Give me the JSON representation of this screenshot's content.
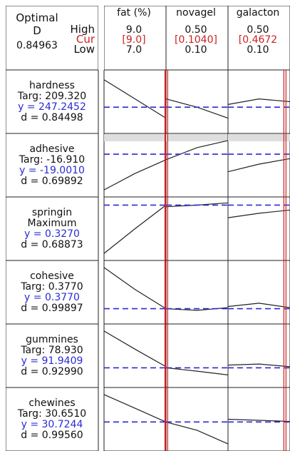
{
  "optimal": {
    "label": "Optimal",
    "d_label": "D",
    "d_value": "0.84963",
    "high_label": "High",
    "cur_label": "Cur",
    "low_label": "Low"
  },
  "factors": [
    {
      "name": "fat (%)",
      "high": "9.0",
      "cur": "[9.0]",
      "low": "7.0",
      "cur_fraction": 1.0
    },
    {
      "name": "novagel",
      "high": "0.50",
      "cur": "[0.1040]",
      "low": "0.10",
      "cur_fraction": 0.01
    },
    {
      "name": "galacton",
      "high": "0.50",
      "cur": "[0.4672",
      "low": "0.10",
      "cur_fraction": 0.918
    }
  ],
  "responses": [
    {
      "name": "hardness",
      "goal": "Targ: 209.320",
      "y": "y = 247.2452",
      "d": "d = 0.84498"
    },
    {
      "name": "adhesive",
      "goal": "Targ: -16.910",
      "y": "y = -19.0010",
      "d": "d = 0.69892"
    },
    {
      "name": "springin",
      "goal": "Maximum",
      "y": "y = 0.3270",
      "d": "d = 0.68873"
    },
    {
      "name": "cohesive",
      "goal": "Targ: 0.3770",
      "y": "y = 0.3770",
      "d": "d = 0.99897"
    },
    {
      "name": "gummines",
      "goal": "Targ: 78.930",
      "y": "y = 91.9409",
      "d": "d = 0.92990"
    },
    {
      "name": "chewines",
      "goal": "Targ: 30.6510",
      "y": "y = 30.7244",
      "d": "d = 0.99560"
    }
  ],
  "colors": {
    "current_value": "#cc2222",
    "response_value": "#2a2ad6",
    "text": "#111111",
    "grid": "#222222"
  },
  "chart_data": {
    "type": "line",
    "description_type": "response optimizer grid",
    "factors": [
      "fat (%)",
      "novagel",
      "galacton"
    ],
    "factor_ranges": [
      [
        7.0,
        9.0
      ],
      [
        0.1,
        0.5
      ],
      [
        0.1,
        0.5
      ]
    ],
    "factor_current": [
      9.0,
      0.104,
      0.4672
    ],
    "responses": [
      "hardness",
      "adhesive",
      "springin",
      "cohesive",
      "gummines",
      "chewines"
    ],
    "response_current": [
      247.2452,
      -19.001,
      0.327,
      0.377,
      91.9409,
      30.7244
    ],
    "desirability": [
      0.84498,
      0.69892,
      0.68873,
      0.99897,
      0.9299,
      0.9956
    ],
    "composite_desirability": 0.84963,
    "curves": [
      [
        {
          "x": [
            0,
            0.5,
            1
          ],
          "y": [
            0.9,
            0.55,
            0.2
          ]
        },
        {
          "x": [
            0,
            0.5,
            1
          ],
          "y": [
            0.55,
            0.4,
            0.2
          ]
        },
        {
          "x": [
            0,
            0.5,
            1
          ],
          "y": [
            0.45,
            0.55,
            0.5
          ]
        }
      ],
      [
        {
          "x": [
            0,
            0.5,
            1
          ],
          "y": [
            0.05,
            0.35,
            0.6
          ]
        },
        {
          "x": [
            0,
            0.5,
            1
          ],
          "y": [
            0.6,
            0.82,
            0.95
          ]
        },
        {
          "x": [
            0,
            0.5,
            1
          ],
          "y": [
            0.38,
            0.52,
            0.62
          ]
        }
      ],
      [
        {
          "x": [
            0,
            0.5,
            1
          ],
          "y": [
            0.05,
            0.5,
            0.93
          ]
        },
        {
          "x": [
            0,
            0.5,
            1
          ],
          "y": [
            0.9,
            0.93,
            0.97
          ]
        },
        {
          "x": [
            0,
            0.5,
            1
          ],
          "y": [
            0.7,
            0.78,
            0.84
          ]
        }
      ],
      [
        {
          "x": [
            0,
            0.5,
            1
          ],
          "y": [
            0.95,
            0.55,
            0.2
          ]
        },
        {
          "x": [
            0,
            0.5,
            1
          ],
          "y": [
            0.2,
            0.17,
            0.22
          ]
        },
        {
          "x": [
            0,
            0.5,
            1
          ],
          "y": [
            0.24,
            0.3,
            0.22
          ]
        }
      ],
      [
        {
          "x": [
            0,
            0.5,
            1
          ],
          "y": [
            0.95,
            0.62,
            0.3
          ]
        },
        {
          "x": [
            0,
            0.5,
            1
          ],
          "y": [
            0.28,
            0.22,
            0.15
          ]
        },
        {
          "x": [
            0,
            0.5,
            1
          ],
          "y": [
            0.33,
            0.35,
            0.3
          ]
        }
      ],
      [
        {
          "x": [
            0,
            0.5,
            1
          ],
          "y": [
            0.95,
            0.7,
            0.45
          ]
        },
        {
          "x": [
            0,
            0.5,
            1
          ],
          "y": [
            0.45,
            0.3,
            0.05
          ]
        },
        {
          "x": [
            0,
            0.5,
            1
          ],
          "y": [
            0.5,
            0.48,
            0.46
          ]
        }
      ]
    ],
    "reference_level": [
      0.4,
      0.7,
      0.93,
      0.2,
      0.28,
      0.45
    ]
  }
}
